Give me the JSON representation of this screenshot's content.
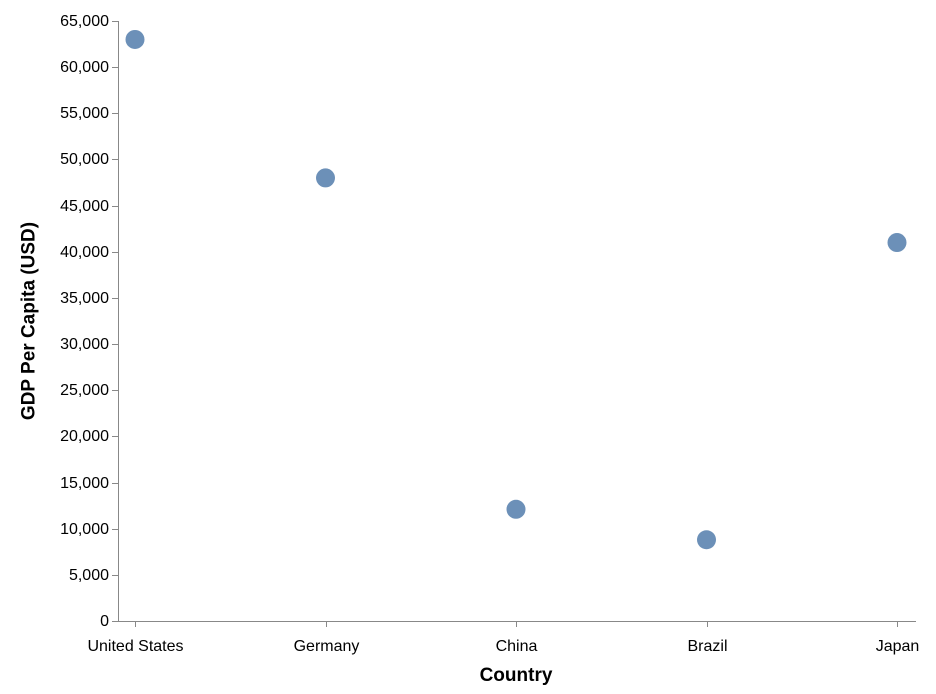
{
  "chart_data": {
    "type": "scatter",
    "categories": [
      "United States",
      "Germany",
      "China",
      "Brazil",
      "Japan"
    ],
    "series": [
      {
        "values": [
          63000,
          48000,
          12100,
          8800,
          41000
        ]
      }
    ],
    "title": "",
    "xlabel": "Country",
    "ylabel": "GDP Per Capita (USD)",
    "ylim": [
      0,
      65000
    ],
    "yticks": [
      0,
      5000,
      10000,
      15000,
      20000,
      25000,
      30000,
      35000,
      40000,
      45000,
      50000,
      55000,
      60000,
      65000
    ],
    "ytick_labels": [
      "0",
      "5,000",
      "10,000",
      "15,000",
      "20,000",
      "25,000",
      "30,000",
      "35,000",
      "40,000",
      "45,000",
      "50,000",
      "55,000",
      "60,000",
      "65,000"
    ],
    "grid": false,
    "legend": "none",
    "point_color": "#4c78a8"
  }
}
